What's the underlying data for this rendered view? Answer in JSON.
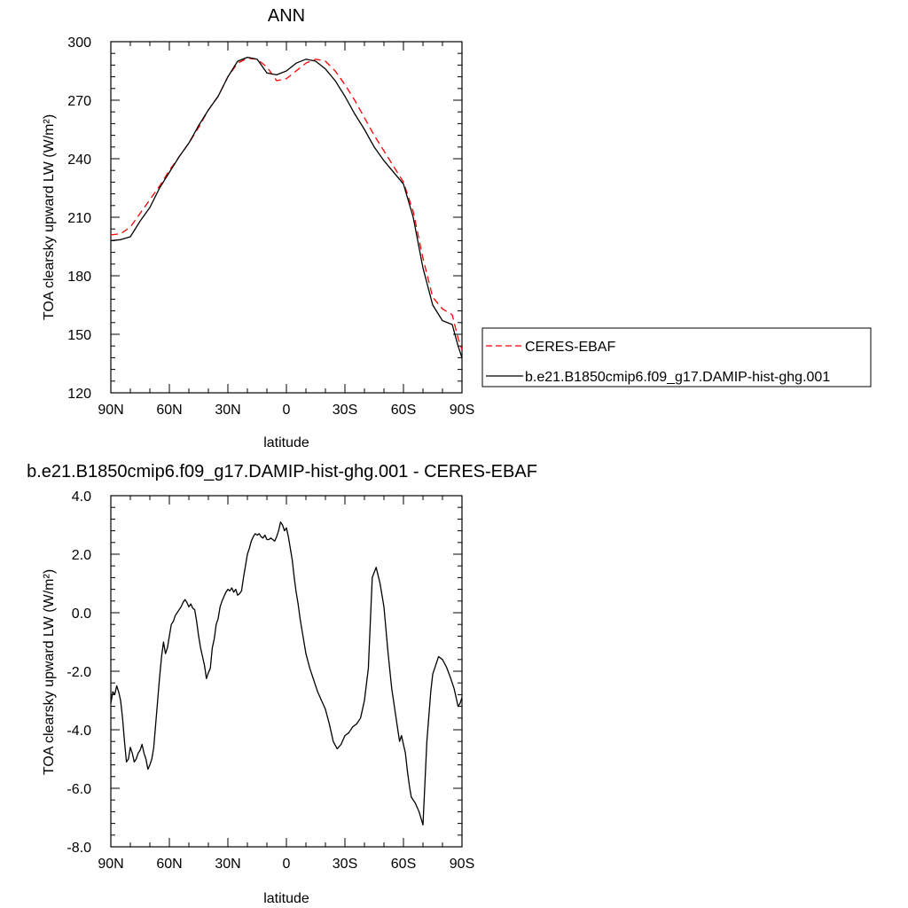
{
  "chart_data": [
    {
      "type": "line",
      "title": "ANN",
      "xlabel": "latitude",
      "ylabel": "TOA clearsky upward LW (W/m²)",
      "xlim": [
        90,
        -90
      ],
      "ylim": [
        120,
        300
      ],
      "xticks": [
        90,
        60,
        30,
        0,
        -30,
        -60,
        -90
      ],
      "xtick_labels": [
        "90N",
        "60N",
        "30N",
        "0",
        "30S",
        "60S",
        "90S"
      ],
      "yticks": [
        120,
        150,
        180,
        210,
        240,
        270,
        300
      ],
      "ytick_labels": [
        "120",
        "150",
        "180",
        "210",
        "240",
        "270",
        "300"
      ],
      "grid": false,
      "legend_position": "right",
      "series": [
        {
          "name": "CERES-EBAF",
          "color": "#ff0000",
          "dash": true,
          "x": [
            90,
            85,
            80,
            75,
            70,
            65,
            60,
            55,
            50,
            45,
            40,
            35,
            30,
            25,
            20,
            15,
            10,
            5,
            0,
            -5,
            -10,
            -15,
            -20,
            -25,
            -30,
            -35,
            -40,
            -45,
            -50,
            -55,
            -60,
            -65,
            -70,
            -75,
            -80,
            -85,
            -88,
            -90
          ],
          "values": [
            201,
            201.5,
            205,
            212,
            219,
            226,
            234,
            241,
            248,
            256,
            265,
            272,
            282,
            289,
            291.5,
            291,
            287,
            280,
            281,
            285,
            289,
            291,
            290,
            285,
            278,
            270,
            261,
            252,
            244,
            236,
            228,
            213,
            189,
            169,
            163,
            160,
            148,
            142
          ]
        },
        {
          "name": "b.e21.B1850cmip6.f09_g17.DAMIP-hist-ghg.001",
          "color": "#000000",
          "dash": false,
          "x": [
            90,
            85,
            80,
            75,
            70,
            65,
            60,
            55,
            50,
            45,
            40,
            35,
            30,
            25,
            20,
            15,
            10,
            5,
            0,
            -5,
            -10,
            -15,
            -20,
            -25,
            -30,
            -35,
            -40,
            -45,
            -50,
            -55,
            -60,
            -65,
            -70,
            -75,
            -80,
            -85,
            -88,
            -90
          ],
          "values": [
            198,
            198.5,
            200,
            208,
            215,
            225,
            233,
            241,
            248,
            257,
            265,
            272,
            282,
            290,
            292,
            291,
            284,
            283,
            285,
            289,
            291,
            290,
            286,
            280,
            272,
            263,
            255,
            246,
            239,
            233,
            227,
            210,
            184,
            165,
            157,
            155,
            144,
            138
          ]
        }
      ]
    },
    {
      "type": "line",
      "title": "b.e21.B1850cmip6.f09_g17.DAMIP-hist-ghg.001 - CERES-EBAF",
      "xlabel": "latitude",
      "ylabel": "TOA clearsky upward LW (W/m²)",
      "xlim": [
        90,
        -90
      ],
      "ylim": [
        -8.0,
        4.0
      ],
      "xticks": [
        90,
        60,
        30,
        0,
        -30,
        -60,
        -90
      ],
      "xtick_labels": [
        "90N",
        "60N",
        "30N",
        "0",
        "30S",
        "60S",
        "90S"
      ],
      "yticks": [
        -8,
        -6,
        -4,
        -2,
        0,
        2,
        4
      ],
      "ytick_labels": [
        "-8.0",
        "-6.0",
        "-4.0",
        "-2.0",
        "0.0",
        "2.0",
        "4.0"
      ],
      "grid": false,
      "series": [
        {
          "color": "#000000",
          "x": [
            90,
            89,
            88,
            87,
            86,
            85,
            84,
            83,
            82,
            81,
            80,
            79,
            78,
            77,
            76,
            75,
            74,
            73,
            72,
            71,
            70,
            69,
            68,
            67,
            66,
            65,
            64,
            63,
            62,
            61,
            60,
            59,
            58,
            57,
            56,
            55,
            54,
            53,
            52,
            51,
            50,
            49,
            48,
            47,
            46,
            45,
            44,
            43,
            42,
            41,
            40,
            39,
            38,
            37,
            36,
            35,
            34,
            33,
            32,
            31,
            30,
            29,
            28,
            27,
            26,
            25,
            24,
            23,
            22,
            21,
            20,
            19,
            18,
            17,
            16,
            15,
            14,
            13,
            12,
            11,
            10,
            9,
            8,
            7,
            6,
            5,
            4,
            3,
            2,
            1,
            0,
            -1,
            -2,
            -3,
            -4,
            -5,
            -6,
            -7,
            -8,
            -9,
            -10,
            -12,
            -14,
            -16,
            -18,
            -20,
            -22,
            -24,
            -26,
            -28,
            -30,
            -32,
            -34,
            -36,
            -38,
            -40,
            -42,
            -44,
            -46,
            -48,
            -50,
            -52,
            -54,
            -56,
            -58,
            -59,
            -60,
            -61,
            -62,
            -63,
            -64,
            -66,
            -68,
            -70,
            -72,
            -74,
            -75,
            -76,
            -77,
            -78,
            -80,
            -82,
            -84,
            -86,
            -87,
            -88,
            -89,
            -90
          ],
          "values": [
            -3.1,
            -2.7,
            -2.8,
            -2.5,
            -2.7,
            -3.0,
            -3.6,
            -4.4,
            -5.1,
            -5.0,
            -4.6,
            -4.8,
            -5.1,
            -5.0,
            -4.8,
            -4.7,
            -4.5,
            -4.8,
            -5.0,
            -5.35,
            -5.2,
            -5.0,
            -4.6,
            -3.8,
            -3.0,
            -2.2,
            -1.5,
            -1.0,
            -1.4,
            -1.2,
            -0.8,
            -0.4,
            -0.3,
            -0.1,
            0.0,
            0.1,
            0.2,
            0.35,
            0.45,
            0.35,
            0.2,
            0.3,
            0.15,
            0.1,
            -0.3,
            -0.8,
            -1.2,
            -1.5,
            -1.8,
            -2.25,
            -2.05,
            -1.9,
            -1.2,
            -0.9,
            -0.4,
            -0.2,
            0.2,
            0.4,
            0.55,
            0.7,
            0.8,
            0.75,
            0.85,
            0.7,
            0.8,
            0.6,
            0.65,
            0.75,
            1.2,
            1.6,
            2.0,
            2.2,
            2.45,
            2.6,
            2.7,
            2.65,
            2.7,
            2.6,
            2.55,
            2.65,
            2.5,
            2.5,
            2.55,
            2.5,
            2.45,
            2.6,
            2.8,
            3.1,
            3.0,
            2.8,
            2.9,
            2.6,
            2.2,
            1.8,
            1.2,
            0.7,
            0.3,
            -0.2,
            -0.6,
            -1.0,
            -1.4,
            -1.9,
            -2.3,
            -2.7,
            -3.0,
            -3.3,
            -3.8,
            -4.4,
            -4.65,
            -4.5,
            -4.2,
            -4.1,
            -3.9,
            -3.8,
            -3.6,
            -3.0,
            -1.9,
            1.2,
            1.55,
            1.0,
            0.2,
            -1.3,
            -2.6,
            -3.5,
            -4.4,
            -4.2,
            -4.5,
            -4.8,
            -5.4,
            -5.9,
            -6.3,
            -6.5,
            -6.8,
            -7.25,
            -4.4,
            -2.7,
            -2.1,
            -1.9,
            -1.7,
            -1.5,
            -1.6,
            -1.85,
            -2.2,
            -2.6,
            -2.9,
            -3.2,
            -3.1,
            -2.9
          ],
          "x_note": ""
        }
      ]
    }
  ]
}
